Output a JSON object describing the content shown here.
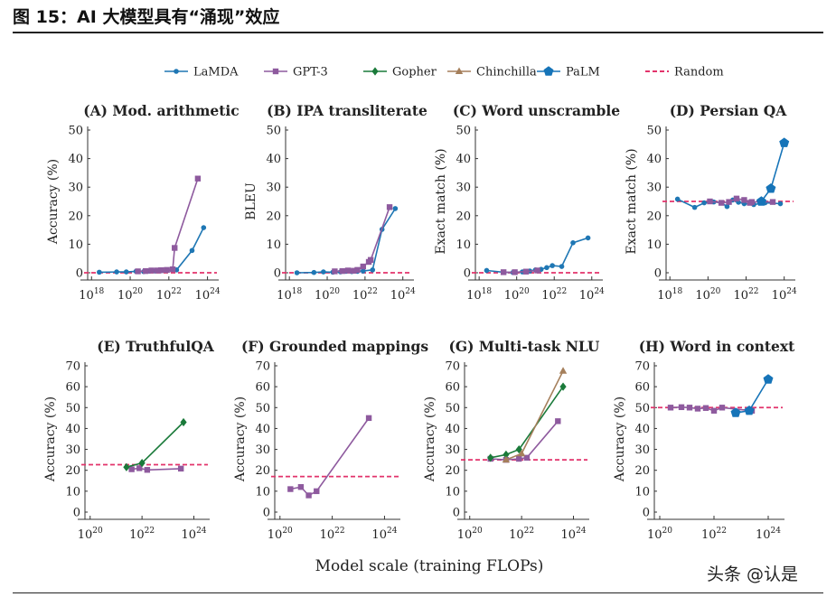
{
  "figure": {
    "title": "图 15：AI 大模型具有“涌现”效应",
    "xlabel": "Model scale (training FLOPs)",
    "watermark": "头条 @认是"
  },
  "legend": [
    {
      "name": "LaMDA",
      "color": "#1f77b4",
      "marker": "circle"
    },
    {
      "name": "GPT-3",
      "color": "#8e5a9e",
      "marker": "square"
    },
    {
      "name": "Gopher",
      "color": "#1a7a3a",
      "marker": "diamond"
    },
    {
      "name": "Chinchilla",
      "color": "#a57f5b",
      "marker": "triangle"
    },
    {
      "name": "PaLM",
      "color": "#1674b8",
      "marker": "pentagon"
    },
    {
      "name": "Random",
      "color": "#e2336b",
      "marker": "dashed"
    }
  ],
  "chart_data": [
    {
      "type": "line",
      "title": "(A) Mod. arithmetic",
      "ylabel": "Accuracy (%)",
      "xlim": [
        17.8,
        24.3
      ],
      "xticks": [
        18,
        20,
        22,
        24
      ],
      "ylim": [
        0,
        50
      ],
      "yticks": [
        0,
        10,
        20,
        30,
        40,
        50
      ],
      "random": 0,
      "series": [
        {
          "name": "LaMDA",
          "x": [
            18.4,
            19.3,
            19.8,
            20.3,
            20.7,
            21.0,
            21.3,
            21.6,
            21.9,
            22.4,
            23.2,
            23.8
          ],
          "y": [
            0.2,
            0.3,
            0.3,
            0.5,
            0.4,
            0.6,
            0.6,
            0.7,
            0.8,
            1.0,
            7.8,
            15.8
          ]
        },
        {
          "name": "GPT-3",
          "x": [
            20.4,
            20.8,
            21.1,
            21.4,
            21.6,
            21.9,
            22.2,
            22.3,
            23.5
          ],
          "y": [
            0.5,
            0.6,
            0.8,
            0.8,
            0.9,
            1.0,
            1.2,
            8.7,
            33
          ]
        }
      ]
    },
    {
      "type": "line",
      "title": "(B) IPA transliterate",
      "ylabel": "BLEU",
      "xlim": [
        17.8,
        24.3
      ],
      "xticks": [
        18,
        20,
        22,
        24
      ],
      "ylim": [
        0,
        50
      ],
      "yticks": [
        0,
        10,
        20,
        30,
        40,
        50
      ],
      "random": 0,
      "series": [
        {
          "name": "LaMDA",
          "x": [
            18.4,
            19.3,
            19.8,
            20.3,
            20.7,
            21.0,
            21.3,
            21.6,
            21.9,
            22.4,
            22.9,
            23.6
          ],
          "y": [
            0,
            0.1,
            0.3,
            0.2,
            0.3,
            0.5,
            0.4,
            0.5,
            0.6,
            1.0,
            15.2,
            22.5
          ]
        },
        {
          "name": "GPT-3",
          "x": [
            20.4,
            20.8,
            21.1,
            21.4,
            21.6,
            21.9,
            22.2,
            22.3,
            23.3
          ],
          "y": [
            0.5,
            0.6,
            0.8,
            0.7,
            1.0,
            2.2,
            3.8,
            4.5,
            23
          ]
        }
      ]
    },
    {
      "type": "line",
      "title": "(C) Word unscramble",
      "ylabel": "Exact match (%)",
      "xlim": [
        17.8,
        24.3
      ],
      "xticks": [
        18,
        20,
        22,
        24
      ],
      "ylim": [
        0,
        50
      ],
      "yticks": [
        0,
        10,
        20,
        30,
        40,
        50
      ],
      "random": 0,
      "series": [
        {
          "name": "LaMDA",
          "x": [
            18.4,
            19.3,
            19.8,
            20.3,
            20.7,
            21.0,
            21.3,
            21.6,
            21.9,
            22.4,
            23.0,
            23.8
          ],
          "y": [
            0.8,
            0.2,
            0.1,
            0.3,
            0.6,
            1.0,
            1.2,
            1.8,
            2.5,
            2.2,
            10.5,
            12.2
          ]
        },
        {
          "name": "GPT-3",
          "x": [
            19.3,
            19.9,
            20.5,
            21.1
          ],
          "y": [
            0.2,
            0.2,
            0.4,
            0.8
          ]
        }
      ]
    },
    {
      "type": "line",
      "title": "(D) Persian QA",
      "ylabel": "Exact match (%)",
      "xlim": [
        17.8,
        24.3
      ],
      "xticks": [
        18,
        20,
        22,
        24
      ],
      "ylim": [
        0,
        50
      ],
      "yticks": [
        0,
        10,
        20,
        30,
        40,
        50
      ],
      "random": 25,
      "series": [
        {
          "name": "LaMDA",
          "x": [
            18.4,
            19.3,
            19.8,
            20.3,
            20.7,
            21.0,
            21.3,
            21.6,
            21.9,
            22.4,
            23.0,
            23.8
          ],
          "y": [
            25.8,
            22.9,
            24.5,
            24.8,
            24.6,
            23.2,
            25.5,
            24.7,
            24.2,
            23.9,
            24.5,
            24.2
          ]
        },
        {
          "name": "GPT-3",
          "x": [
            20.1,
            20.7,
            21.1,
            21.5,
            21.9,
            22.2,
            22.3,
            23.4
          ],
          "y": [
            25.0,
            24.5,
            24.8,
            26.0,
            25.5,
            24.5,
            24.8,
            24.8
          ]
        },
        {
          "name": "PaLM",
          "x": [
            22.8,
            23.3,
            24.0
          ],
          "y": [
            25.0,
            29.5,
            45.5
          ]
        }
      ]
    },
    {
      "type": "line",
      "title": "(E) TruthfulQA",
      "ylabel": "Accuracy (%)",
      "xlim": [
        19.8,
        24.4
      ],
      "xticks": [
        20,
        22,
        24
      ],
      "ylim": [
        0,
        70
      ],
      "yticks": [
        0,
        10,
        20,
        30,
        40,
        50,
        60,
        70
      ],
      "random": 22.7,
      "series": [
        {
          "name": "GPT-3",
          "x": [
            21.6,
            21.9,
            22.2,
            23.5
          ],
          "y": [
            20.5,
            21.0,
            20.2,
            20.8
          ]
        },
        {
          "name": "Gopher",
          "x": [
            21.4,
            22.0,
            23.6
          ],
          "y": [
            21.5,
            23.5,
            43
          ]
        }
      ]
    },
    {
      "type": "line",
      "title": "(F) Grounded mappings",
      "ylabel": "Accuracy (%)",
      "xlim": [
        19.8,
        24.4
      ],
      "xticks": [
        20,
        22,
        24
      ],
      "ylim": [
        0,
        70
      ],
      "yticks": [
        0,
        10,
        20,
        30,
        40,
        50,
        60,
        70
      ],
      "random": 17,
      "series": [
        {
          "name": "GPT-3",
          "x": [
            20.4,
            20.8,
            21.1,
            21.4,
            23.4
          ],
          "y": [
            11,
            12,
            8,
            10,
            45
          ]
        }
      ]
    },
    {
      "type": "line",
      "title": "(G) Multi-task NLU",
      "ylabel": "Accuracy (%)",
      "xlim": [
        19.8,
        24.4
      ],
      "xticks": [
        20,
        22,
        24
      ],
      "ylim": [
        0,
        70
      ],
      "yticks": [
        0,
        10,
        20,
        30,
        40,
        50,
        60,
        70
      ],
      "random": 25,
      "series": [
        {
          "name": "GPT-3",
          "x": [
            20.8,
            21.4,
            21.9,
            22.2,
            23.4
          ],
          "y": [
            25.5,
            25.0,
            25.5,
            26.0,
            43.5
          ]
        },
        {
          "name": "Gopher",
          "x": [
            20.8,
            21.4,
            21.9,
            23.6
          ],
          "y": [
            26,
            27.5,
            30,
            60
          ]
        },
        {
          "name": "Chinchilla",
          "x": [
            21.4,
            22.0,
            23.6
          ],
          "y": [
            25,
            28,
            67.5
          ]
        }
      ]
    },
    {
      "type": "line",
      "title": "(H) Word in context",
      "ylabel": "Accuracy (%)",
      "xlim": [
        19.8,
        24.4
      ],
      "xticks": [
        20,
        22,
        24
      ],
      "ylim": [
        0,
        70
      ],
      "yticks": [
        0,
        10,
        20,
        30,
        40,
        50,
        60,
        70
      ],
      "random": 50,
      "series": [
        {
          "name": "GPT-3",
          "x": [
            20.4,
            20.8,
            21.1,
            21.4,
            21.7,
            22.0,
            22.3,
            23.4
          ],
          "y": [
            50,
            50.2,
            50,
            49.5,
            49.8,
            48.5,
            50,
            48.5
          ]
        },
        {
          "name": "PaLM",
          "x": [
            22.8,
            23.3,
            24.0
          ],
          "y": [
            47.5,
            48.5,
            63.5
          ]
        }
      ]
    }
  ]
}
